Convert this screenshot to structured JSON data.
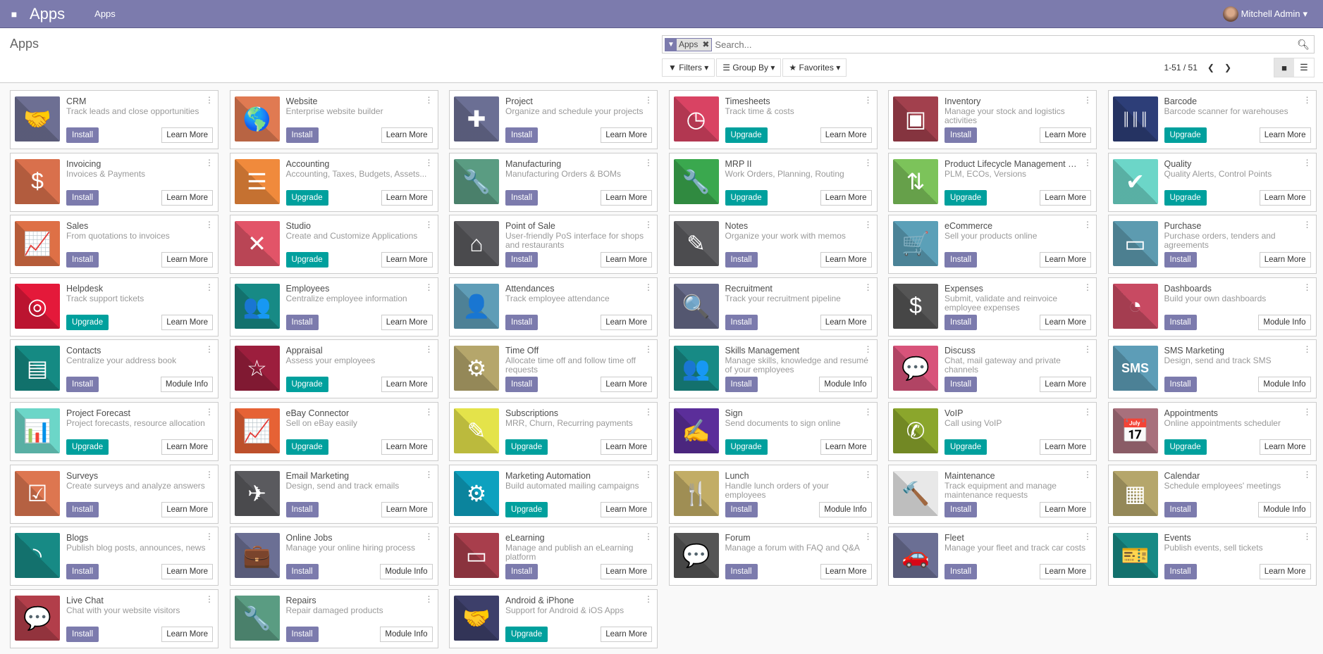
{
  "navbar": {
    "brand": "Apps",
    "menu": "Apps",
    "user": "Mitchell Admin"
  },
  "control": {
    "title": "Apps",
    "facet": "Apps",
    "search_placeholder": "Search...",
    "filters": "Filters",
    "group_by": "Group By",
    "favorites": "Favorites",
    "pager": "1-51 / 51"
  },
  "colors": {
    "navbar": "#7c7bad",
    "install": "#7c7bad",
    "upgrade": "#00a09d"
  },
  "apps": [
    {
      "name": "CRM",
      "desc": "Track leads and close opportunities",
      "action": "Install",
      "more": "Learn More",
      "color": "#6d6f93",
      "icon": "handshake-icon",
      "glyph": "🤝"
    },
    {
      "name": "Website",
      "desc": "Enterprise website builder",
      "action": "Install",
      "more": "Learn More",
      "color": "#e07a52",
      "icon": "globe-icon",
      "glyph": "🌎"
    },
    {
      "name": "Project",
      "desc": "Organize and schedule your projects",
      "action": "Install",
      "more": "Learn More",
      "color": "#6b6f94",
      "icon": "puzzle-icon",
      "glyph": "✚"
    },
    {
      "name": "Timesheets",
      "desc": "Track time & costs",
      "action": "Upgrade",
      "more": "Learn More",
      "color": "#d94363",
      "icon": "clock-icon",
      "glyph": "◷"
    },
    {
      "name": "Inventory",
      "desc": "Manage your stock and logistics activities",
      "action": "Install",
      "more": "Learn More",
      "color": "#a2404d",
      "icon": "box-icon",
      "glyph": "▣"
    },
    {
      "name": "Barcode",
      "desc": "Barcode scanner for warehouses",
      "action": "Upgrade",
      "more": "Learn More",
      "color": "#2d3e78",
      "icon": "barcode-icon",
      "glyph": "║║║"
    },
    {
      "name": "Invoicing",
      "desc": "Invoices & Payments",
      "action": "Install",
      "more": "Learn More",
      "color": "#d9704c",
      "icon": "invoice-icon",
      "glyph": "$"
    },
    {
      "name": "Accounting",
      "desc": "Accounting, Taxes, Budgets, Assets...",
      "action": "Upgrade",
      "more": "Learn More",
      "color": "#f08a3c",
      "icon": "document-icon",
      "glyph": "☰"
    },
    {
      "name": "Manufacturing",
      "desc": "Manufacturing Orders & BOMs",
      "action": "Install",
      "more": "Learn More",
      "color": "#5a9c82",
      "icon": "wrench-icon",
      "glyph": "🔧"
    },
    {
      "name": "MRP II",
      "desc": "Work Orders, Planning, Routing",
      "action": "Upgrade",
      "more": "Learn More",
      "color": "#3aa84e",
      "icon": "wrench-icon",
      "glyph": "🔧"
    },
    {
      "name": "Product Lifecycle Management (P...",
      "desc": "PLM, ECOs, Versions",
      "action": "Upgrade",
      "more": "Learn More",
      "color": "#7cc35a",
      "icon": "box-arrows-icon",
      "glyph": "⇅"
    },
    {
      "name": "Quality",
      "desc": "Quality Alerts, Control Points",
      "action": "Upgrade",
      "more": "Learn More",
      "color": "#6cd6c8",
      "icon": "clipboard-check-icon",
      "glyph": "✔"
    },
    {
      "name": "Sales",
      "desc": "From quotations to invoices",
      "action": "Install",
      "more": "Learn More",
      "color": "#de7046",
      "icon": "trend-chart-icon",
      "glyph": "📈"
    },
    {
      "name": "Studio",
      "desc": "Create and Customize Applications",
      "action": "Upgrade",
      "more": "Learn More",
      "color": "#e25468",
      "icon": "tools-icon",
      "glyph": "✕"
    },
    {
      "name": "Point of Sale",
      "desc": "User-friendly PoS interface for shops and restaurants",
      "action": "Install",
      "more": "Learn More",
      "color": "#5a5a5e",
      "icon": "store-icon",
      "glyph": "⌂"
    },
    {
      "name": "Notes",
      "desc": "Organize your work with memos",
      "action": "Install",
      "more": "Learn More",
      "color": "#5d5d60",
      "icon": "note-icon",
      "glyph": "✎"
    },
    {
      "name": "eCommerce",
      "desc": "Sell your products online",
      "action": "Install",
      "more": "Learn More",
      "color": "#5ba0b8",
      "icon": "cart-icon",
      "glyph": "🛒"
    },
    {
      "name": "Purchase",
      "desc": "Purchase orders, tenders and agreements",
      "action": "Install",
      "more": "Learn More",
      "color": "#5d9bb0",
      "icon": "credit-card-icon",
      "glyph": "▭"
    },
    {
      "name": "Helpdesk",
      "desc": "Track support tickets",
      "action": "Upgrade",
      "more": "Learn More",
      "color": "#e4193a",
      "icon": "lifebuoy-icon",
      "glyph": "◎"
    },
    {
      "name": "Employees",
      "desc": "Centralize employee information",
      "action": "Install",
      "more": "Learn More",
      "color": "#178a85",
      "icon": "users-icon",
      "glyph": "👥"
    },
    {
      "name": "Attendances",
      "desc": "Track employee attendance",
      "action": "Install",
      "more": "Learn More",
      "color": "#5f9db7",
      "icon": "user-clock-icon",
      "glyph": "👤"
    },
    {
      "name": "Recruitment",
      "desc": "Track your recruitment pipeline",
      "action": "Install",
      "more": "Learn More",
      "color": "#666a89",
      "icon": "magnifier-icon",
      "glyph": "🔍"
    },
    {
      "name": "Expenses",
      "desc": "Submit, validate and reinvoice employee expenses",
      "action": "Install",
      "more": "Learn More",
      "color": "#555555",
      "icon": "user-dollar-icon",
      "glyph": "$"
    },
    {
      "name": "Dashboards",
      "desc": "Build your own dashboards",
      "action": "Install",
      "more": "Module Info",
      "color": "#c84a62",
      "icon": "gauge-icon",
      "glyph": "◔"
    },
    {
      "name": "Contacts",
      "desc": "Centralize your address book",
      "action": "Install",
      "more": "Module Info",
      "color": "#158a83",
      "icon": "address-book-icon",
      "glyph": "▤"
    },
    {
      "name": "Appraisal",
      "desc": "Assess your employees",
      "action": "Upgrade",
      "more": "Learn More",
      "color": "#9c1e3d",
      "icon": "star-icon",
      "glyph": "☆"
    },
    {
      "name": "Time Off",
      "desc": "Allocate time off and follow time off requests",
      "action": "Install",
      "more": "Learn More",
      "color": "#b5a66b",
      "icon": "user-gear-icon",
      "glyph": "⚙"
    },
    {
      "name": "Skills Management",
      "desc": "Manage skills, knowledge and resumé of your employees",
      "action": "Install",
      "more": "Module Info",
      "color": "#178a85",
      "icon": "users-icon",
      "glyph": "👥"
    },
    {
      "name": "Discuss",
      "desc": "Chat, mail gateway and private channels",
      "action": "Install",
      "more": "Learn More",
      "color": "#d8537a",
      "icon": "chat-icon",
      "glyph": "💬"
    },
    {
      "name": "SMS Marketing",
      "desc": "Design, send and track SMS",
      "action": "Install",
      "more": "Module Info",
      "color": "#5d9db7",
      "icon": "sms-icon",
      "glyph": "SMS"
    },
    {
      "name": "Project Forecast",
      "desc": "Project forecasts, resource allocation",
      "action": "Upgrade",
      "more": "Learn More",
      "color": "#6cd6c8",
      "icon": "bar-chart-icon",
      "glyph": "📊"
    },
    {
      "name": "eBay Connector",
      "desc": "Sell on eBay easily",
      "action": "Upgrade",
      "more": "Learn More",
      "color": "#e66235",
      "icon": "trend-chart-icon",
      "glyph": "📈"
    },
    {
      "name": "Subscriptions",
      "desc": "MRR, Churn, Recurring payments",
      "action": "Upgrade",
      "more": "Learn More",
      "color": "#e4e34a",
      "icon": "rss-pencil-icon",
      "glyph": "✎"
    },
    {
      "name": "Sign",
      "desc": "Send documents to sign online",
      "action": "Upgrade",
      "more": "Learn More",
      "color": "#5b2e9a",
      "icon": "sign-document-icon",
      "glyph": "✍"
    },
    {
      "name": "VoIP",
      "desc": "Call using VoIP",
      "action": "Upgrade",
      "more": "Learn More",
      "color": "#8ba62c",
      "icon": "phone-icon",
      "glyph": "✆"
    },
    {
      "name": "Appointments",
      "desc": "Online appointments scheduler",
      "action": "Upgrade",
      "more": "Learn More",
      "color": "#a8707c",
      "icon": "calendar-clock-icon",
      "glyph": "📅"
    },
    {
      "name": "Surveys",
      "desc": "Create surveys and analyze answers",
      "action": "Install",
      "more": "Learn More",
      "color": "#dd7650",
      "icon": "checklist-icon",
      "glyph": "☑"
    },
    {
      "name": "Email Marketing",
      "desc": "Design, send and track emails",
      "action": "Install",
      "more": "Learn More",
      "color": "#5a5a5e",
      "icon": "paper-plane-icon",
      "glyph": "✈"
    },
    {
      "name": "Marketing Automation",
      "desc": "Build automated mailing campaigns",
      "action": "Upgrade",
      "more": "Learn More",
      "color": "#0da1bf",
      "icon": "gear-mail-icon",
      "glyph": "⚙"
    },
    {
      "name": "Lunch",
      "desc": "Handle lunch orders of your employees",
      "action": "Install",
      "more": "Module Info",
      "color": "#c2ad66",
      "icon": "cutlery-icon",
      "glyph": "🍴"
    },
    {
      "name": "Maintenance",
      "desc": "Track equipment and manage maintenance requests",
      "action": "Install",
      "more": "Learn More",
      "color": "#e8e8e8",
      "icon": "hammer-icon",
      "glyph": "🔨"
    },
    {
      "name": "Calendar",
      "desc": "Schedule employees' meetings",
      "action": "Install",
      "more": "Module Info",
      "color": "#b5a66b",
      "icon": "calendar-icon",
      "glyph": "▦"
    },
    {
      "name": "Blogs",
      "desc": "Publish blog posts, announces, news",
      "action": "Install",
      "more": "Learn More",
      "color": "#178a85",
      "icon": "rss-icon",
      "glyph": "◝"
    },
    {
      "name": "Online Jobs",
      "desc": "Manage your online hiring process",
      "action": "Install",
      "more": "Module Info",
      "color": "#6b6f94",
      "icon": "briefcase-icon",
      "glyph": "💼"
    },
    {
      "name": "eLearning",
      "desc": "Manage and publish an eLearning platform",
      "action": "Install",
      "more": "Learn More",
      "color": "#a83e4c",
      "icon": "presentation-icon",
      "glyph": "▭"
    },
    {
      "name": "Forum",
      "desc": "Manage a forum with FAQ and Q&A",
      "action": "Install",
      "more": "Learn More",
      "color": "#555555",
      "icon": "chat-users-icon",
      "glyph": "💬"
    },
    {
      "name": "Fleet",
      "desc": "Manage your fleet and track car costs",
      "action": "Install",
      "more": "Learn More",
      "color": "#6b6f94",
      "icon": "car-icon",
      "glyph": "🚗"
    },
    {
      "name": "Events",
      "desc": "Publish events, sell tickets",
      "action": "Install",
      "more": "Learn More",
      "color": "#178a85",
      "icon": "ticket-icon",
      "glyph": "🎫"
    },
    {
      "name": "Live Chat",
      "desc": "Chat with your website visitors",
      "action": "Install",
      "more": "Learn More",
      "color": "#b23e4a",
      "icon": "chat-icon",
      "glyph": "💬"
    },
    {
      "name": "Repairs",
      "desc": "Repair damaged products",
      "action": "Install",
      "more": "Module Info",
      "color": "#5a9c82",
      "icon": "repair-icon",
      "glyph": "🔧"
    },
    {
      "name": "Android & iPhone",
      "desc": "Support for Android & iOS Apps",
      "action": "Upgrade",
      "more": "Learn More",
      "color": "#3d3f6a",
      "icon": "handshake-icon",
      "glyph": "🤝"
    }
  ]
}
